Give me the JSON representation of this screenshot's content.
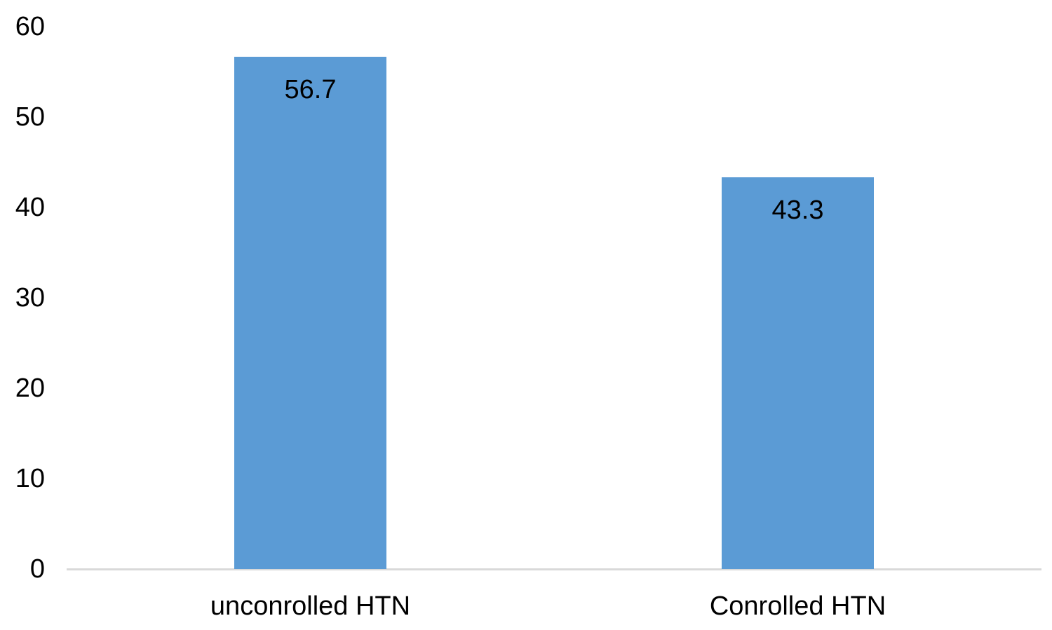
{
  "chart_data": {
    "type": "bar",
    "title": "",
    "xlabel": "",
    "ylabel": "",
    "categories": [
      "unconrolled HTN",
      "Conrolled HTN"
    ],
    "values": [
      56.7,
      43.3
    ],
    "data_labels": [
      "56.7",
      "43.3"
    ],
    "data_label_position": "inside-end",
    "ylim": [
      0,
      60
    ],
    "yticks": [
      0,
      10,
      20,
      30,
      40,
      50,
      60
    ],
    "grid": false,
    "legend": false,
    "bar_color": "#5B9BD5",
    "text_color": "#000000",
    "axis_line_color": "#D9D9D9",
    "background_color": "#FFFFFF"
  }
}
